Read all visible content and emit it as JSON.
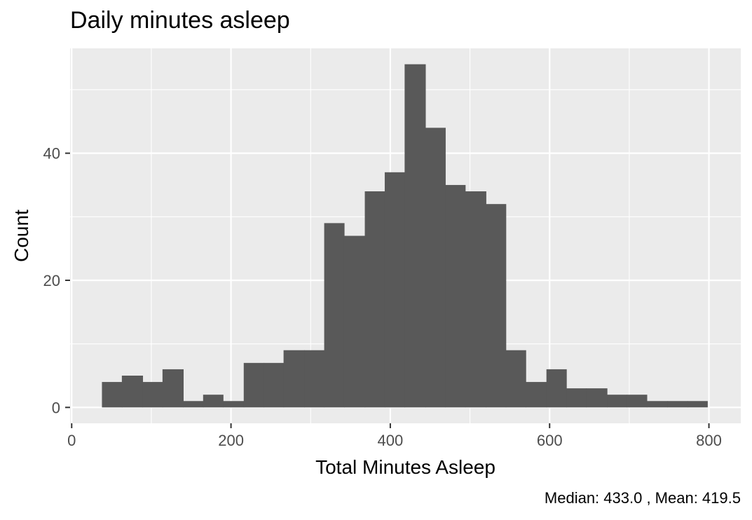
{
  "chart_data": {
    "type": "bar",
    "title": "Daily minutes asleep",
    "xlabel": "Total Minutes Asleep",
    "ylabel": "Count",
    "caption": "Median: 433.0  ,  Mean: 419.5",
    "xlim": [
      -2,
      840
    ],
    "ylim": [
      -2.5,
      56.5
    ],
    "x_ticks": [
      0,
      200,
      400,
      600,
      800
    ],
    "y_ticks": [
      0,
      20,
      40
    ],
    "grid": true,
    "bin_width": 25.3,
    "bins": [
      {
        "start": 38,
        "end": 63,
        "count": 4
      },
      {
        "start": 63,
        "end": 89,
        "count": 5
      },
      {
        "start": 89,
        "end": 114,
        "count": 4
      },
      {
        "start": 114,
        "end": 140,
        "count": 6
      },
      {
        "start": 140,
        "end": 165,
        "count": 1
      },
      {
        "start": 165,
        "end": 190,
        "count": 2
      },
      {
        "start": 190,
        "end": 216,
        "count": 1
      },
      {
        "start": 216,
        "end": 241,
        "count": 7
      },
      {
        "start": 241,
        "end": 266,
        "count": 7
      },
      {
        "start": 266,
        "end": 292,
        "count": 9
      },
      {
        "start": 292,
        "end": 317,
        "count": 9
      },
      {
        "start": 317,
        "end": 342,
        "count": 29
      },
      {
        "start": 342,
        "end": 368,
        "count": 27
      },
      {
        "start": 368,
        "end": 393,
        "count": 34
      },
      {
        "start": 393,
        "end": 418,
        "count": 37
      },
      {
        "start": 418,
        "end": 444,
        "count": 54
      },
      {
        "start": 444,
        "end": 469,
        "count": 44
      },
      {
        "start": 469,
        "end": 494,
        "count": 35
      },
      {
        "start": 494,
        "end": 520,
        "count": 34
      },
      {
        "start": 520,
        "end": 545,
        "count": 32
      },
      {
        "start": 545,
        "end": 570,
        "count": 9
      },
      {
        "start": 570,
        "end": 596,
        "count": 4
      },
      {
        "start": 596,
        "end": 621,
        "count": 6
      },
      {
        "start": 621,
        "end": 646,
        "count": 3
      },
      {
        "start": 646,
        "end": 672,
        "count": 3
      },
      {
        "start": 672,
        "end": 697,
        "count": 2
      },
      {
        "start": 697,
        "end": 722,
        "count": 2
      },
      {
        "start": 722,
        "end": 748,
        "count": 1
      },
      {
        "start": 748,
        "end": 773,
        "count": 1
      },
      {
        "start": 773,
        "end": 798,
        "count": 1
      }
    ],
    "colors": {
      "panel": "#ebebeb",
      "grid_major": "#ffffff",
      "bar": "#595959",
      "axis": "#333333"
    }
  }
}
